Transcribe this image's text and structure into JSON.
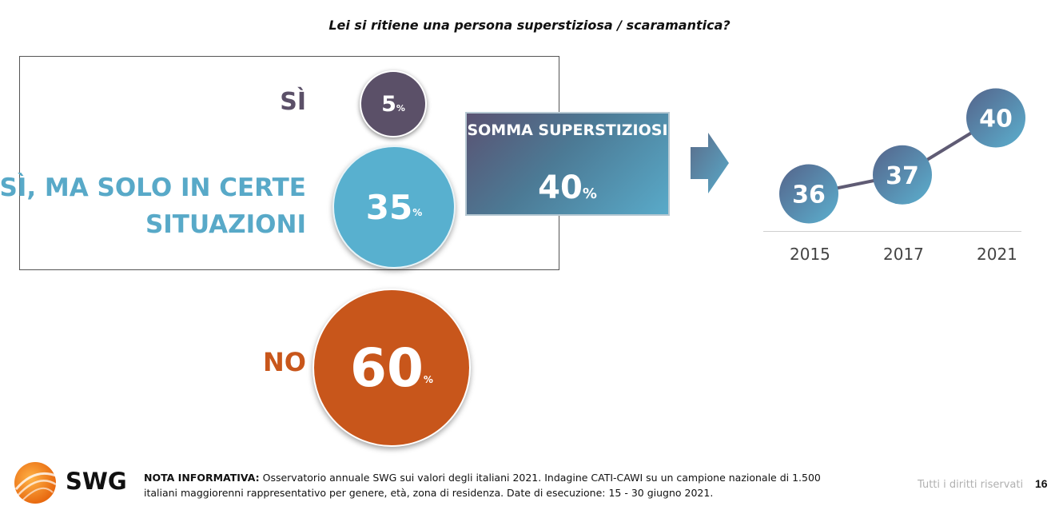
{
  "question": "Lei si ritiene una persona superstiziosa / scaramantica?",
  "answers": [
    {
      "label": "SÌ",
      "value": "5",
      "unit": "%",
      "color": "#5b5068"
    },
    {
      "label": "SÌ, MA SOLO IN CERTE SITUAZIONI",
      "value": "35",
      "unit": "%",
      "color": "#58b0cf"
    },
    {
      "label": "NO",
      "value": "60",
      "unit": "%",
      "color": "#c8561b"
    }
  ],
  "somma": {
    "title": "SOMMA SUPERSTIZIOSI",
    "value": "40",
    "unit": "%"
  },
  "chart_data": {
    "type": "line",
    "x": [
      "2015",
      "2017",
      "2021"
    ],
    "series": [
      {
        "values": [
          36,
          37,
          40
        ]
      }
    ],
    "data_labels": [
      "36",
      "37",
      "40"
    ],
    "ylim": [
      34,
      42
    ],
    "grid": false,
    "color": "#4e8fad"
  },
  "footer": {
    "logo": "SWG",
    "note_label": "NOTA INFORMATIVA:",
    "note_text": "Osservatorio annuale SWG sui valori degli italiani 2021. Indagine CATI-CAWI su un campione nazionale di 1.500 italiani maggiorenni rappresentativo per genere, età, zona di residenza. Date di esecuzione: 15 - 30 giugno 2021.",
    "rights": "Tutti i diritti riservati",
    "page": "16"
  }
}
